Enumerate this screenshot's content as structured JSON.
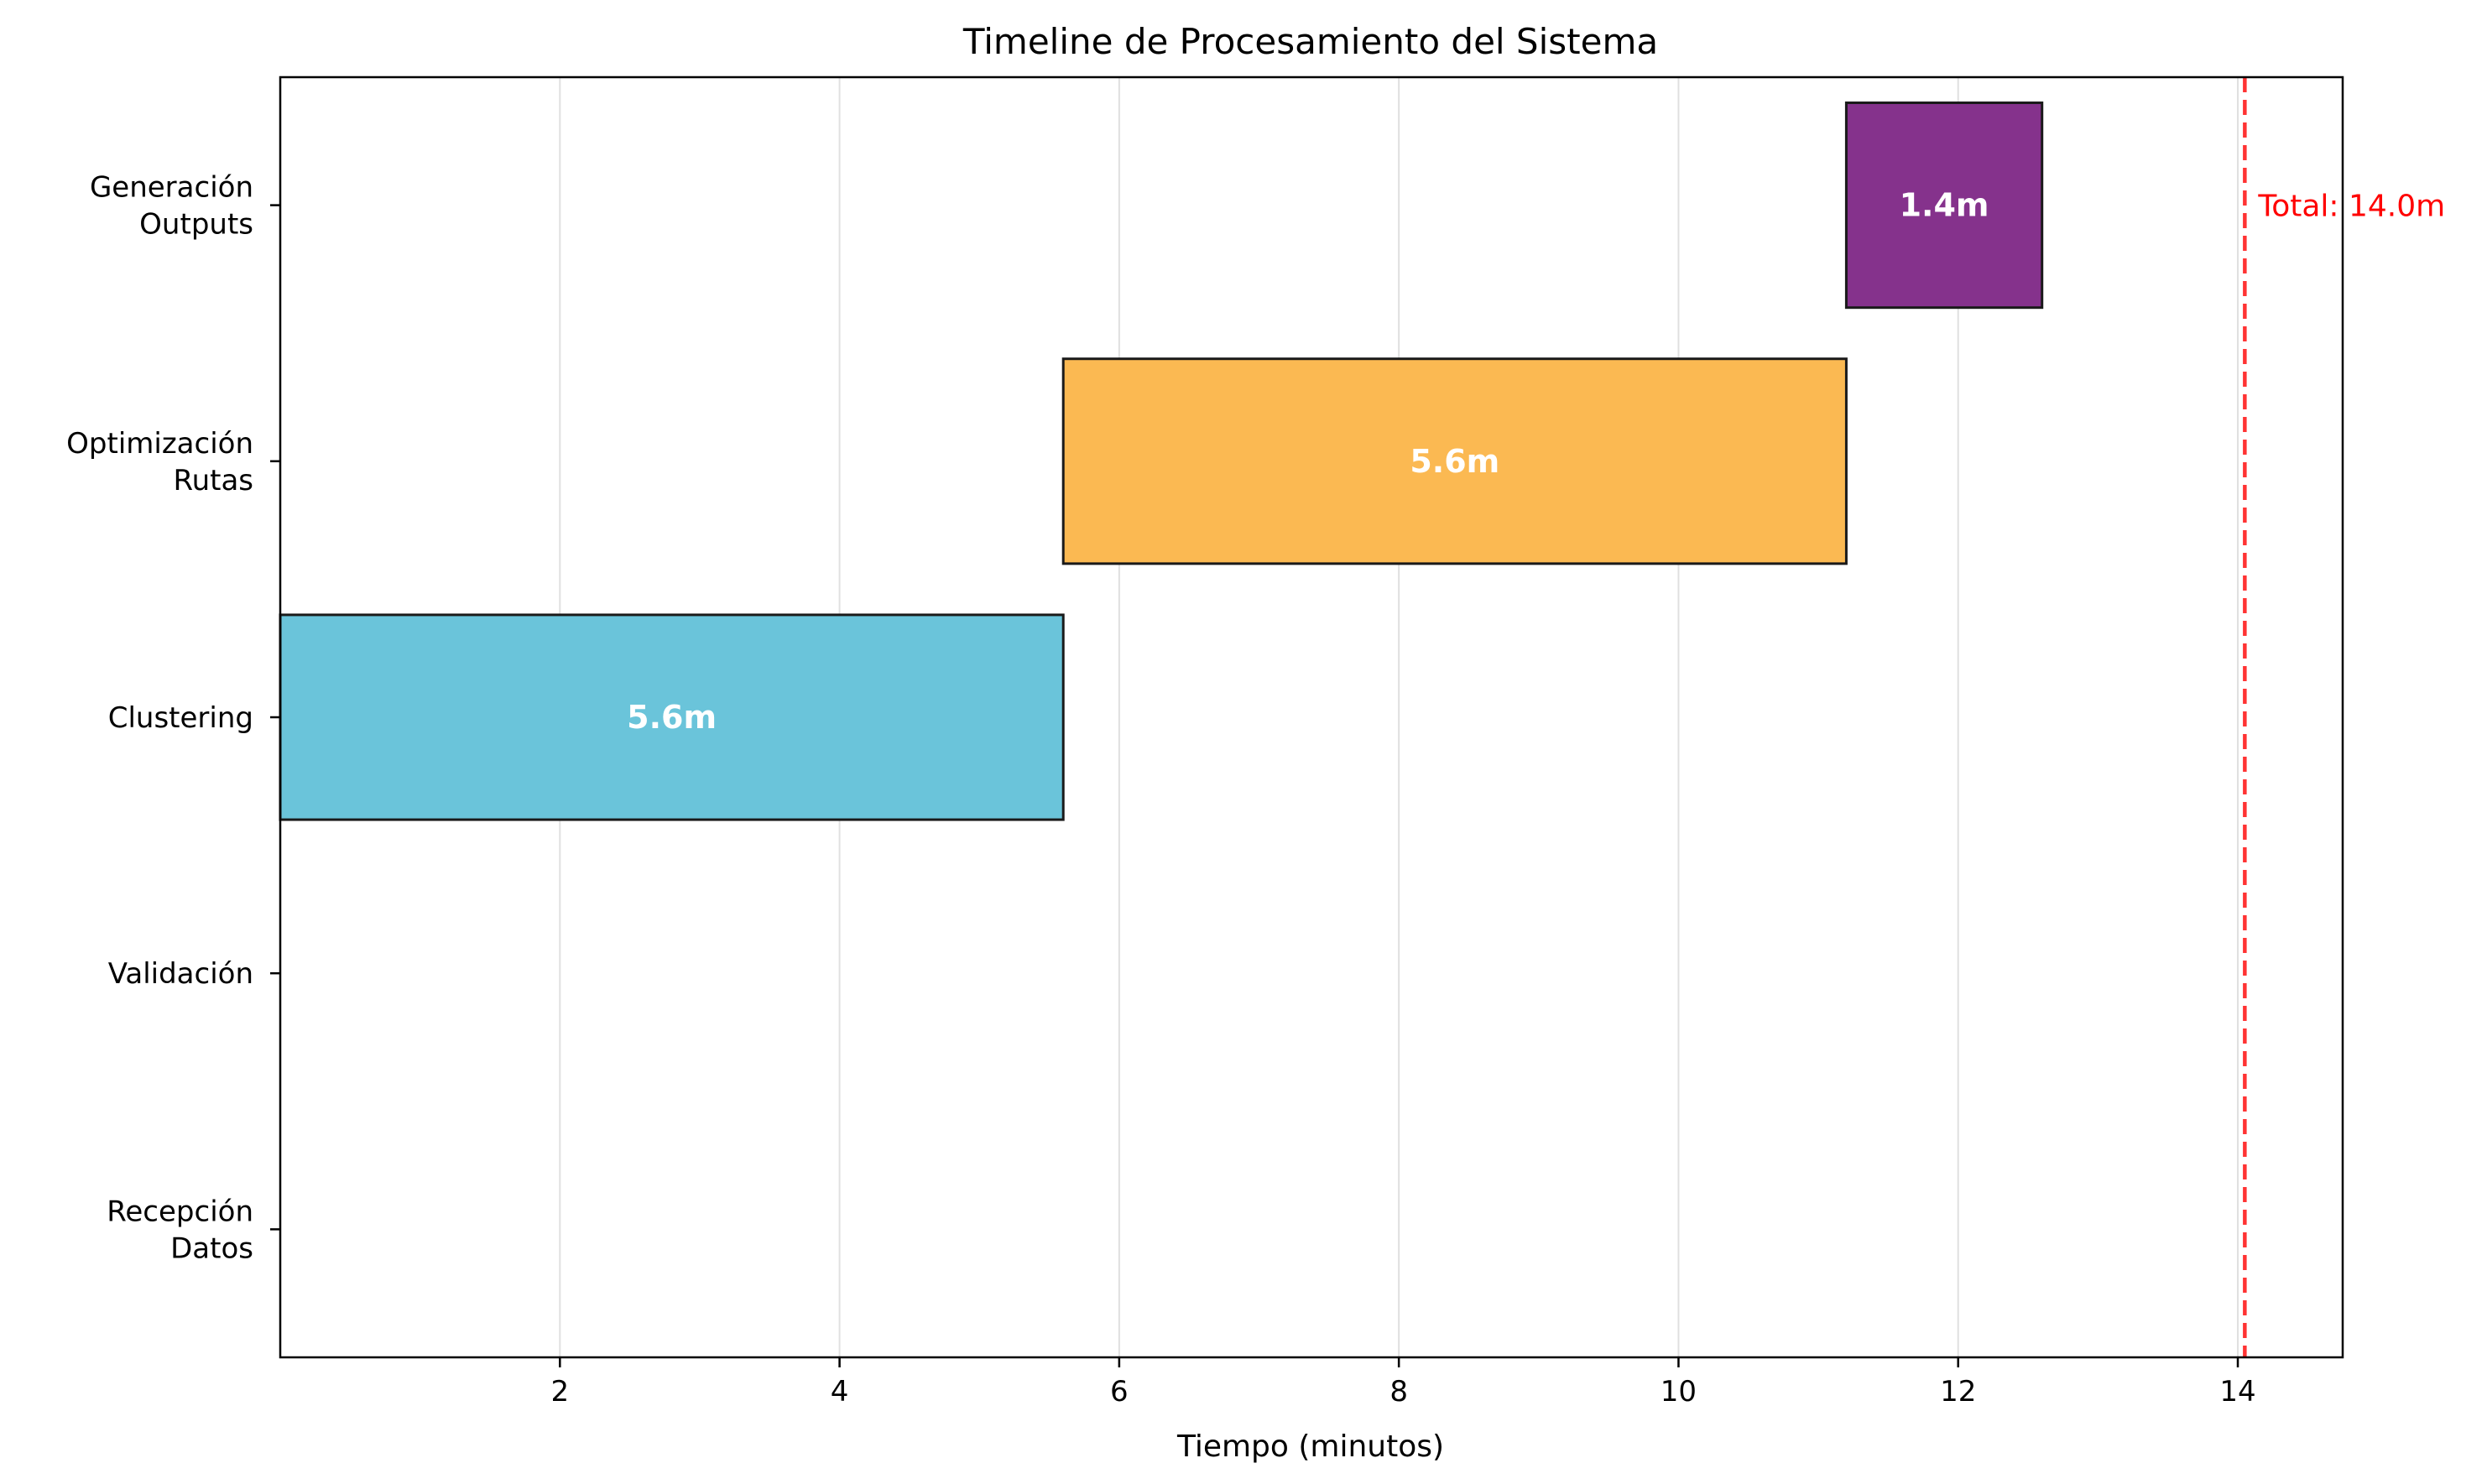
{
  "chart_data": {
    "type": "bar",
    "orientation": "horizontal-gantt",
    "title": "Timeline de Procesamiento del Sistema",
    "xlabel": "Tiempo (minutos)",
    "ylabel": "",
    "xlim": [
      0,
      14.75
    ],
    "xticks": [
      2,
      4,
      6,
      8,
      10,
      12,
      14
    ],
    "grid": "vertical",
    "tasks": [
      {
        "label_lines": [
          "Recepción",
          "Datos"
        ],
        "start": 0.0,
        "duration": 0.0,
        "value_label": "",
        "color": "#ffffff"
      },
      {
        "label_lines": [
          "Validación"
        ],
        "start": 0.0,
        "duration": 0.0,
        "value_label": "",
        "color": "#ffffff"
      },
      {
        "label_lines": [
          "Clustering"
        ],
        "start": 0.0,
        "duration": 5.6,
        "value_label": "5.6m",
        "color": "#6ac4da"
      },
      {
        "label_lines": [
          "Optimización",
          "Rutas"
        ],
        "start": 5.6,
        "duration": 5.6,
        "value_label": "5.6m",
        "color": "#fbb952"
      },
      {
        "label_lines": [
          "Generación",
          "Outputs"
        ],
        "start": 11.2,
        "duration": 1.4,
        "value_label": "1.4m",
        "color": "#85328c"
      }
    ],
    "total_line": {
      "x": 14.05,
      "label": "Total: 14.0m",
      "color": "#ff3333"
    }
  }
}
